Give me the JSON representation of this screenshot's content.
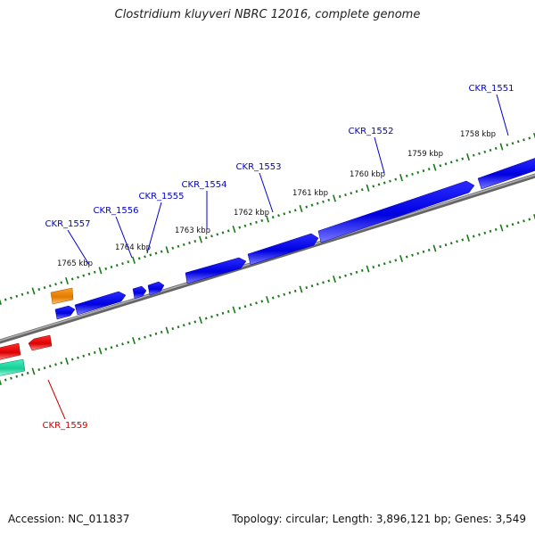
{
  "title": "Clostridium kluyveri NBRC 12016, complete genome",
  "footer": {
    "accession": "Accession: NC_011837",
    "summary": "Topology: circular; Length: 3,896,121 bp; Genes: 3,549"
  },
  "colors": {
    "forward_gene": "#0000ee",
    "reverse_gene": "#dd0000",
    "rna_gene": "#22ddaa",
    "other_gene": "#ee8800",
    "tick": "#1a7a1a",
    "backbone": "#808080",
    "label_forward": "#0000cc",
    "label_reverse": "#cc0000"
  },
  "scale_labels": [
    "1758 kbp",
    "1759 kbp",
    "1760 kbp",
    "1761 kbp",
    "1762 kbp",
    "1763 kbp",
    "1764 kbp",
    "1765 kbp"
  ],
  "gene_labels": [
    {
      "text": "CKR_1551",
      "strand": "forward"
    },
    {
      "text": "CKR_1552",
      "strand": "forward"
    },
    {
      "text": "CKR_1553",
      "strand": "forward"
    },
    {
      "text": "CKR_1554",
      "strand": "forward"
    },
    {
      "text": "CKR_1555",
      "strand": "forward"
    },
    {
      "text": "CKR_1556",
      "strand": "forward"
    },
    {
      "text": "CKR_1557",
      "strand": "forward"
    },
    {
      "text": "CKR_1559",
      "strand": "reverse"
    }
  ]
}
